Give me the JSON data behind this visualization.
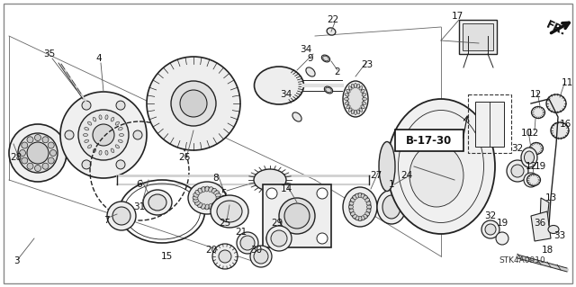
{
  "bg_color": "#ffffff",
  "border_color": "#aaaaaa",
  "ref_label": "B-17-30",
  "part_code": "STK4A0910",
  "label_fontsize": 7.5,
  "ref_fontsize": 8.5,
  "line_color": "#222222",
  "text_color": "#111111",
  "fill_color": "#e8e8e8",
  "fill_color2": "#d0d0d0",
  "fill_color3": "#c0c0c0"
}
